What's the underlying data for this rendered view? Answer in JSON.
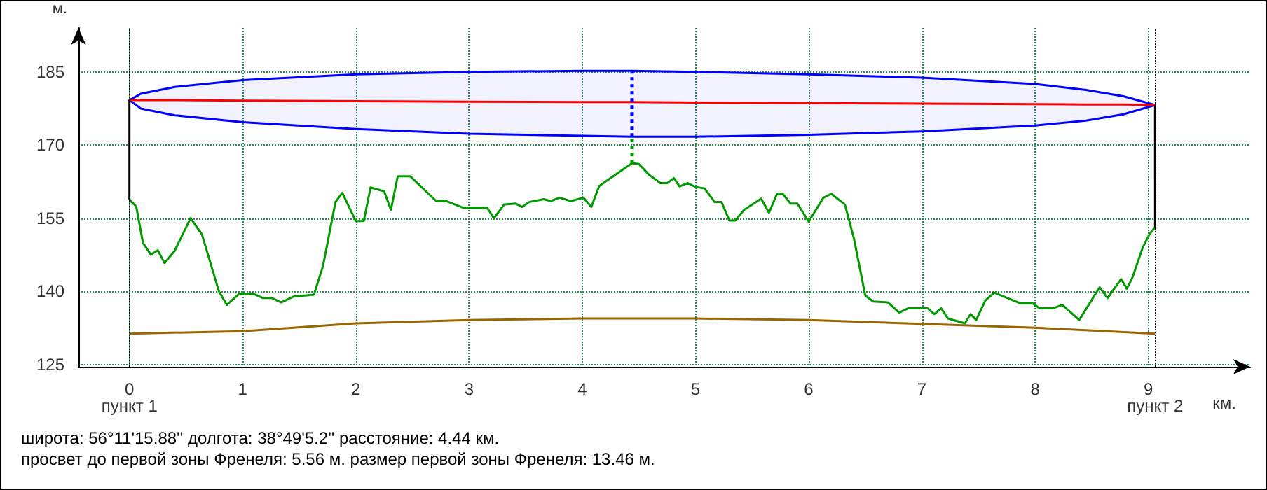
{
  "chart_data": {
    "type": "line",
    "xlabel": "км.",
    "ylabel": "м.",
    "xlim": [
      -0.45,
      9.9
    ],
    "xticks": [
      0,
      1,
      2,
      3,
      4,
      5,
      6,
      7,
      8,
      9
    ],
    "ylim": [
      124.5,
      194
    ],
    "yticks": [
      125,
      140,
      155,
      170,
      185
    ],
    "grid": true,
    "marker": "none",
    "series": [
      {
        "color": "#009900",
        "x": [
          0,
          0.06,
          0.12,
          0.19,
          0.25,
          0.31,
          0.4,
          0.54,
          0.64,
          0.79,
          0.86,
          0.97,
          1.1,
          1.18,
          1.26,
          1.34,
          1.45,
          1.63,
          1.71,
          1.82,
          1.88,
          2.0,
          2.07,
          2.13,
          2.25,
          2.31,
          2.37,
          2.48,
          2.71,
          2.79,
          2.95,
          3.16,
          3.22,
          3.31,
          3.41,
          3.47,
          3.53,
          3.66,
          3.72,
          3.8,
          3.9,
          4.01,
          4.08,
          4.15,
          4.28,
          4.44,
          4.5,
          4.59,
          4.69,
          4.75,
          4.81,
          4.86,
          4.93,
          5.0,
          5.08,
          5.17,
          5.23,
          5.3,
          5.35,
          5.43,
          5.58,
          5.65,
          5.72,
          5.77,
          5.84,
          5.9,
          6.0,
          6.13,
          6.2,
          6.32,
          6.4,
          6.5,
          6.57,
          6.7,
          6.8,
          6.88,
          7.05,
          7.11,
          7.17,
          7.23,
          7.38,
          7.43,
          7.48,
          7.56,
          7.64,
          7.87,
          7.98,
          8.04,
          8.16,
          8.24,
          8.39,
          8.57,
          8.64,
          8.76,
          8.81,
          8.86,
          8.95,
          9.01,
          9.06
        ],
        "values": [
          158.8,
          157.4,
          149.9,
          147.5,
          148.4,
          145.8,
          148.3,
          155.0,
          151.7,
          140.0,
          137.2,
          139.5,
          139.4,
          138.6,
          138.6,
          137.7,
          138.9,
          139.3,
          145.2,
          158.3,
          160.2,
          154.4,
          154.4,
          161.3,
          160.5,
          156.7,
          163.6,
          163.6,
          158.5,
          158.6,
          157.1,
          157.1,
          155.0,
          157.8,
          158.0,
          157.3,
          158.3,
          158.9,
          158.5,
          159.2,
          158.5,
          159.2,
          157.3,
          161.6,
          163.7,
          166.3,
          166.1,
          163.9,
          162.2,
          162.2,
          163.2,
          161.5,
          162.2,
          161.4,
          161.1,
          158.3,
          158.3,
          154.5,
          154.5,
          156.7,
          159.0,
          156.1,
          160.0,
          160.0,
          158.0,
          158.0,
          154.3,
          159.2,
          160.0,
          157.8,
          150.8,
          139.1,
          137.9,
          137.7,
          135.6,
          136.5,
          136.5,
          135.3,
          136.5,
          134.4,
          133.4,
          135.3,
          134.1,
          138.1,
          139.7,
          137.5,
          137.5,
          136.5,
          136.5,
          137.2,
          134.1,
          140.8,
          138.6,
          142.5,
          140.5,
          142.8,
          148.9,
          151.7,
          153.1
        ]
      },
      {
        "color": "#ff0000",
        "x": [
          0,
          0.1,
          0.4,
          1,
          2,
          3,
          4,
          4.44,
          5,
          6,
          7,
          8,
          8.45,
          8.78,
          9.06
        ],
        "values": [
          179.2,
          179.2,
          179.2,
          179.1,
          179.0,
          178.9,
          178.8,
          178.8,
          178.7,
          178.6,
          178.5,
          178.4,
          178.3,
          178.3,
          178.2
        ],
        "upper": [
          179.2,
          180.5,
          181.9,
          183.3,
          184.5,
          185.0,
          185.2,
          185.2,
          185.0,
          184.5,
          183.8,
          182.5,
          181.3,
          180.0,
          178.2
        ],
        "lower": [
          179.2,
          177.5,
          176.1,
          174.7,
          173.3,
          172.3,
          171.9,
          171.7,
          171.7,
          172.1,
          172.8,
          174.0,
          175.0,
          176.3,
          178.2
        ]
      },
      {
        "color": "#996600",
        "x": [
          0,
          1,
          2,
          3,
          4,
          5,
          6,
          7,
          8,
          9.06
        ],
        "values": [
          131.3,
          131.8,
          133.4,
          134.1,
          134.4,
          134.4,
          134.1,
          133.3,
          132.5,
          131.3
        ]
      },
      {
        "color": "#000000",
        "x": [
          0,
          0
        ],
        "values": [
          158.8,
          179.2
        ]
      },
      {
        "color": "#000000",
        "x": [
          9.06,
          9.06
        ],
        "values": [
          153.1,
          178.2
        ]
      },
      {
        "color": "#009900",
        "x": [
          4.44,
          4.44
        ],
        "values": [
          166.3,
          171.7
        ],
        "line_style": "dotted"
      },
      {
        "color": "#0000ff",
        "x": [
          4.44,
          4.44
        ],
        "values": [
          171.7,
          185.2
        ],
        "line_style": "dotted"
      }
    ],
    "ref_lines": [
      {
        "axis": "x",
        "value": 0,
        "label": "пункт 1",
        "color": "#000000",
        "line_style": "dotted"
      },
      {
        "axis": "x",
        "value": 9.06,
        "label": "пункт 2",
        "color": "#000000",
        "line_style": "dotted"
      }
    ],
    "annotations": [
      "широта: 56°11'15.88'' долгота: 38°49'5.2'' расстояние: 4.44 км.",
      "просвет до первой зоны Френеля: 5.56 м. размер первой зоны Френеля: 13.46 м."
    ]
  }
}
